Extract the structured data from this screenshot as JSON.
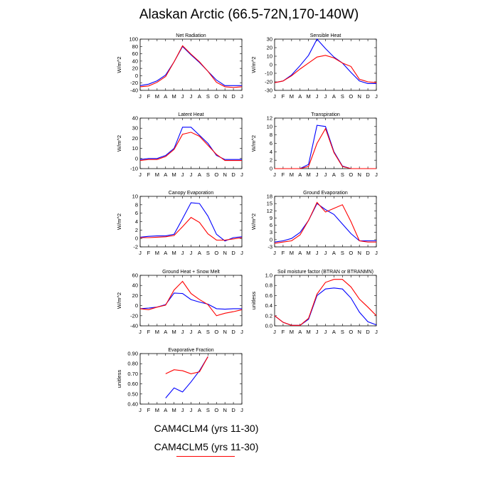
{
  "title": "Alaskan Arctic (66.5-72N,170-140W)",
  "legend": {
    "entries": [
      "CAM4CLM4 (yrs 11-30)",
      "CAM4CLM5 (yrs 11-30)"
    ],
    "colors": [
      "#0000ff",
      "#ff0000"
    ]
  },
  "months": [
    "J",
    "F",
    "M",
    "A",
    "M",
    "J",
    "J",
    "A",
    "S",
    "O",
    "N",
    "D",
    "J"
  ],
  "chart_data": [
    {
      "type": "line",
      "title": "Net Radiation",
      "ylabel": "W/m^2",
      "ylim": [
        -40,
        100
      ],
      "yticks": [
        "100",
        "80",
        "60",
        "40",
        "20",
        "0",
        "-20",
        "-40"
      ],
      "categories": [
        "J",
        "F",
        "M",
        "A",
        "M",
        "J",
        "J",
        "A",
        "S",
        "O",
        "N",
        "D",
        "J"
      ],
      "series": [
        {
          "name": "CAM4CLM4 (yrs 11-30)",
          "color": "#0000ff",
          "values": [
            -27,
            -23,
            -14,
            2,
            38,
            80,
            57,
            36,
            12,
            -12,
            -27,
            -27,
            -27
          ]
        },
        {
          "name": "CAM4CLM5 (yrs 11-30)",
          "color": "#ff0000",
          "values": [
            -30,
            -28,
            -18,
            -2,
            38,
            82,
            59,
            38,
            12,
            -18,
            -30,
            -32,
            -30
          ]
        }
      ]
    },
    {
      "type": "line",
      "title": "Sensible Heat",
      "ylabel": "W/m^2",
      "ylim": [
        -30,
        30
      ],
      "yticks": [
        "30",
        "20",
        "10",
        "0",
        "-10",
        "-20",
        "-30"
      ],
      "categories": [
        "J",
        "F",
        "M",
        "A",
        "M",
        "J",
        "J",
        "A",
        "S",
        "O",
        "N",
        "D",
        "J"
      ],
      "series": [
        {
          "name": "CAM4CLM4 (yrs 11-30)",
          "color": "#0000ff",
          "values": [
            -21,
            -19,
            -12,
            -1,
            11,
            30,
            19,
            9,
            2,
            -9,
            -19,
            -22,
            -22
          ]
        },
        {
          "name": "CAM4CLM5 (yrs 11-30)",
          "color": "#ff0000",
          "values": [
            -21,
            -19,
            -13,
            -5,
            2,
            9,
            11,
            8,
            2,
            -2,
            -17,
            -20,
            -21
          ]
        }
      ]
    },
    {
      "type": "line",
      "title": "Latent Heat",
      "ylabel": "W/m^2",
      "ylim": [
        -10,
        40
      ],
      "yticks": [
        "40",
        "30",
        "20",
        "10",
        "0",
        "-10"
      ],
      "categories": [
        "J",
        "F",
        "M",
        "A",
        "M",
        "J",
        "J",
        "A",
        "S",
        "O",
        "N",
        "D",
        "J"
      ],
      "series": [
        {
          "name": "CAM4CLM4 (yrs 11-30)",
          "color": "#0000ff",
          "values": [
            -1,
            0,
            0,
            3,
            10,
            31,
            31,
            23,
            15,
            3,
            -1,
            -1,
            -1
          ]
        },
        {
          "name": "CAM4CLM5 (yrs 11-30)",
          "color": "#ff0000",
          "values": [
            -2,
            -1,
            -1,
            2,
            9,
            24,
            26,
            22,
            13,
            4,
            -2,
            -2,
            -2
          ]
        }
      ]
    },
    {
      "type": "line",
      "title": "Transpiration",
      "ylabel": "W/m^2",
      "ylim": [
        0,
        12
      ],
      "yticks": [
        "12",
        "10",
        "8",
        "6",
        "4",
        "2",
        "0"
      ],
      "categories": [
        "J",
        "F",
        "M",
        "A",
        "M",
        "J",
        "J",
        "A",
        "S",
        "O",
        "N",
        "D",
        "J"
      ],
      "series": [
        {
          "name": "CAM4CLM4 (yrs 11-30)",
          "color": "#0000ff",
          "values": [
            0,
            0,
            0,
            0,
            1,
            10.3,
            10,
            4,
            0.6,
            0,
            0,
            0,
            0
          ]
        },
        {
          "name": "CAM4CLM5 (yrs 11-30)",
          "color": "#ff0000",
          "values": [
            0,
            0,
            0,
            0,
            0.5,
            6,
            9.5,
            3.8,
            0.5,
            0,
            0,
            0,
            0
          ]
        }
      ]
    },
    {
      "type": "line",
      "title": "Canopy Evaporation",
      "ylabel": "W/m^2",
      "ylim": [
        -2,
        10
      ],
      "yticks": [
        "10",
        "8",
        "6",
        "4",
        "2",
        "0",
        "-2"
      ],
      "categories": [
        "J",
        "F",
        "M",
        "A",
        "M",
        "J",
        "J",
        "A",
        "S",
        "O",
        "N",
        "D",
        "J"
      ],
      "series": [
        {
          "name": "CAM4CLM4 (yrs 11-30)",
          "color": "#0000ff",
          "values": [
            0.3,
            0.5,
            0.6,
            0.6,
            1.0,
            4.7,
            8.5,
            8.3,
            5.3,
            1.0,
            -0.6,
            0.2,
            0.4
          ]
        },
        {
          "name": "CAM4CLM5 (yrs 11-30)",
          "color": "#ff0000",
          "values": [
            0.2,
            0.2,
            0.3,
            0.4,
            0.7,
            2.8,
            5.0,
            3.8,
            1.1,
            -0.4,
            -0.4,
            -0.1,
            0.2
          ]
        }
      ]
    },
    {
      "type": "line",
      "title": "Ground Evaporation",
      "ylabel": "W/m^2",
      "ylim": [
        -3,
        18
      ],
      "yticks": [
        "18",
        "15",
        "12",
        "9",
        "6",
        "3",
        "0",
        "-3"
      ],
      "categories": [
        "J",
        "F",
        "M",
        "A",
        "M",
        "J",
        "J",
        "A",
        "S",
        "O",
        "N",
        "D",
        "J"
      ],
      "series": [
        {
          "name": "CAM4CLM4 (yrs 11-30)",
          "color": "#0000ff",
          "values": [
            -1,
            -0.5,
            0.5,
            3,
            8,
            15,
            12.5,
            10.5,
            6.5,
            2.5,
            -0.5,
            -0.5,
            -0.5
          ]
        },
        {
          "name": "CAM4CLM5 (yrs 11-30)",
          "color": "#ff0000",
          "values": [
            -1.5,
            -1,
            -0.5,
            2,
            8,
            15.5,
            11.5,
            13,
            14.5,
            7.5,
            -0.5,
            -1,
            -1
          ]
        }
      ]
    },
    {
      "type": "line",
      "title": "Ground Heat + Snow Melt",
      "ylabel": "W/m^2",
      "ylim": [
        -40,
        60
      ],
      "yticks": [
        "60",
        "40",
        "20",
        "0",
        "-20",
        "-40"
      ],
      "categories": [
        "J",
        "F",
        "M",
        "A",
        "M",
        "J",
        "J",
        "A",
        "S",
        "O",
        "N",
        "D",
        "J"
      ],
      "series": [
        {
          "name": "CAM4CLM4 (yrs 11-30)",
          "color": "#0000ff",
          "values": [
            -6,
            -5,
            -3,
            2,
            25,
            24,
            12,
            7,
            3,
            -6,
            -7,
            -6,
            -6
          ]
        },
        {
          "name": "CAM4CLM5 (yrs 11-30)",
          "color": "#ff0000",
          "values": [
            -6,
            -8,
            -3,
            1,
            31,
            48,
            24,
            12,
            2,
            -20,
            -15,
            -12,
            -8
          ]
        }
      ]
    },
    {
      "type": "line",
      "title": "Soil moisture factor (BTRAN or BTRANMN)",
      "ylabel": "unitless",
      "ylim": [
        0,
        1.0
      ],
      "yticks": [
        "1.0",
        "0.8",
        "0.6",
        "0.4",
        "0.2",
        "0.0"
      ],
      "categories": [
        "J",
        "F",
        "M",
        "A",
        "M",
        "J",
        "J",
        "A",
        "S",
        "O",
        "N",
        "D",
        "J"
      ],
      "series": [
        {
          "name": "CAM4CLM4 (yrs 11-30)",
          "color": "#0000ff",
          "values": [
            0.2,
            0.07,
            0.01,
            0.01,
            0.13,
            0.6,
            0.73,
            0.75,
            0.73,
            0.55,
            0.27,
            0.08,
            0.02
          ]
        },
        {
          "name": "CAM4CLM5 (yrs 11-30)",
          "color": "#ff0000",
          "values": [
            0.2,
            0.07,
            0.01,
            0.01,
            0.15,
            0.63,
            0.86,
            0.92,
            0.92,
            0.77,
            0.53,
            0.37,
            0.2
          ]
        }
      ]
    },
    {
      "type": "line",
      "title": "Evaporative Fraction",
      "ylabel": "unitless",
      "ylim": [
        0.4,
        0.9
      ],
      "yticks": [
        "0.90",
        "0.80",
        "0.70",
        "0.60",
        "0.50",
        "0.40"
      ],
      "categories": [
        "J",
        "F",
        "M",
        "A",
        "M",
        "J",
        "J",
        "A",
        "S",
        "O",
        "N",
        "D",
        "J"
      ],
      "series": [
        {
          "name": "CAM4CLM4 (yrs 11-30)",
          "color": "#0000ff",
          "values": [
            null,
            null,
            null,
            0.46,
            0.56,
            0.52,
            0.62,
            0.73,
            0.87,
            null,
            null,
            null,
            null
          ]
        },
        {
          "name": "CAM4CLM5 (yrs 11-30)",
          "color": "#ff0000",
          "values": [
            null,
            null,
            null,
            0.7,
            0.74,
            0.73,
            0.7,
            0.72,
            0.87,
            null,
            null,
            null,
            null
          ]
        }
      ]
    }
  ]
}
